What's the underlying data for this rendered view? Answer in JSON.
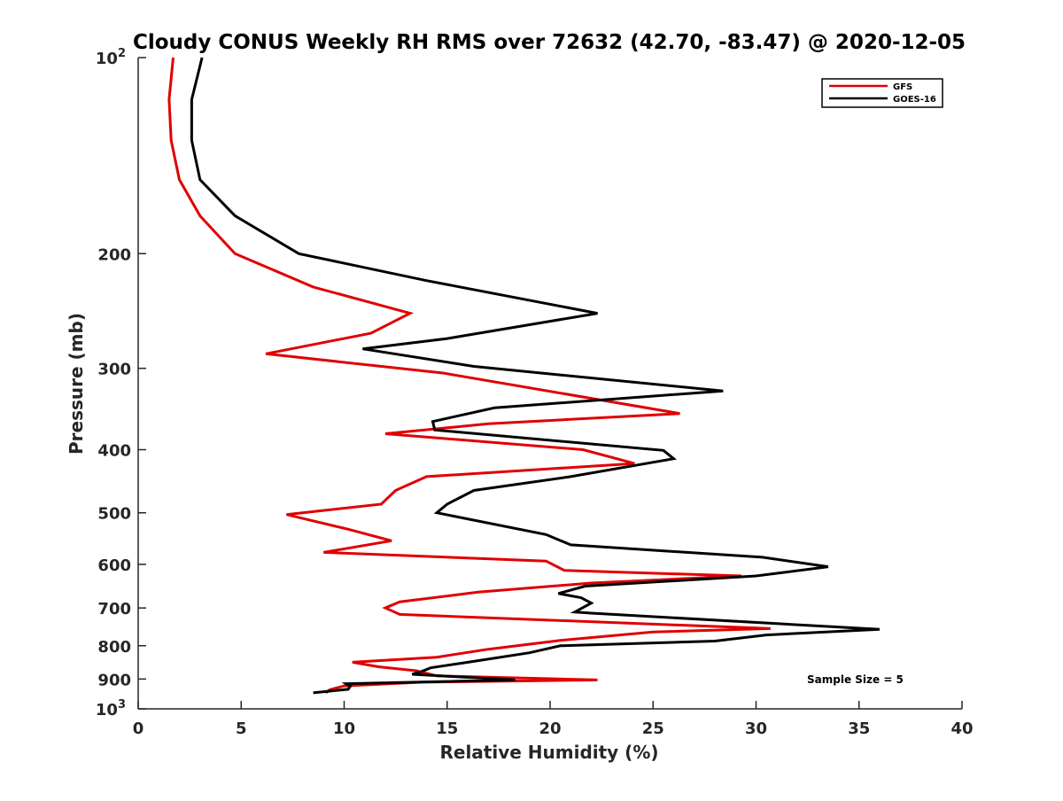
{
  "chart_data": {
    "type": "line",
    "title": "Cloudy CONUS Weekly RH RMS over 72632 (42.70, -83.47) @ 2020-12-05",
    "xlabel": "Relative Humidity (%)",
    "ylabel": "Pressure (mb)",
    "xlim": [
      0,
      40
    ],
    "ylim": [
      100,
      1000
    ],
    "y_scale": "log",
    "y_reversed": true,
    "grid": false,
    "legend_position": "top-right",
    "x_ticks": [
      "0",
      "5",
      "10",
      "15",
      "20",
      "25",
      "30",
      "35",
      "40"
    ],
    "x_tick_values": [
      0,
      5,
      10,
      15,
      20,
      25,
      30,
      35,
      40
    ],
    "y_ticks": [
      {
        "value": 100,
        "base": "10",
        "exp": "2"
      },
      {
        "value": 200,
        "label": "200"
      },
      {
        "value": 300,
        "label": "300"
      },
      {
        "value": 400,
        "label": "400"
      },
      {
        "value": 500,
        "label": "500"
      },
      {
        "value": 600,
        "label": "600"
      },
      {
        "value": 700,
        "label": "700"
      },
      {
        "value": 800,
        "label": "800"
      },
      {
        "value": 900,
        "label": "900"
      },
      {
        "value": 1000,
        "base": "10",
        "exp": "3"
      }
    ],
    "annotation": "Sample Size = 5",
    "series": [
      {
        "name": "GFS",
        "color": "#e00000",
        "points": [
          [
            1.7,
            100
          ],
          [
            1.5,
            116
          ],
          [
            1.6,
            134
          ],
          [
            2.0,
            154
          ],
          [
            3.0,
            175
          ],
          [
            4.7,
            200
          ],
          [
            8.5,
            225
          ],
          [
            13.2,
            247
          ],
          [
            11.3,
            265
          ],
          [
            6.2,
            285
          ],
          [
            14.8,
            305
          ],
          [
            26.3,
            352
          ],
          [
            17.0,
            365
          ],
          [
            12.0,
            378
          ],
          [
            21.6,
            400
          ],
          [
            24.1,
            420
          ],
          [
            14.0,
            440
          ],
          [
            12.5,
            462
          ],
          [
            11.8,
            485
          ],
          [
            7.2,
            503
          ],
          [
            10.2,
            530
          ],
          [
            12.3,
            552
          ],
          [
            9.0,
            575
          ],
          [
            19.8,
            593
          ],
          [
            20.7,
            613
          ],
          [
            29.3,
            625
          ],
          [
            22.0,
            641
          ],
          [
            16.5,
            662
          ],
          [
            12.7,
            685
          ],
          [
            12.0,
            700
          ],
          [
            12.7,
            716
          ],
          [
            30.7,
            753
          ],
          [
            25.0,
            762
          ],
          [
            20.5,
            785
          ],
          [
            17.0,
            810
          ],
          [
            14.5,
            833
          ],
          [
            10.4,
            848
          ],
          [
            11.7,
            862
          ],
          [
            13.5,
            874
          ],
          [
            14.5,
            890
          ],
          [
            22.3,
            903
          ],
          [
            13.8,
            910
          ],
          [
            10.0,
            922
          ],
          [
            9.3,
            935
          ],
          [
            9.1,
            945
          ]
        ]
      },
      {
        "name": "GOES-16",
        "color": "#000000",
        "points": [
          [
            3.1,
            100
          ],
          [
            2.6,
            116
          ],
          [
            2.6,
            134
          ],
          [
            3.0,
            154
          ],
          [
            4.7,
            175
          ],
          [
            7.8,
            200
          ],
          [
            14.0,
            220
          ],
          [
            22.3,
            247
          ],
          [
            15.0,
            270
          ],
          [
            10.9,
            280
          ],
          [
            16.3,
            298
          ],
          [
            28.4,
            325
          ],
          [
            17.3,
            345
          ],
          [
            14.3,
            362
          ],
          [
            14.4,
            373
          ],
          [
            25.5,
            401
          ],
          [
            26.0,
            413
          ],
          [
            21.0,
            440
          ],
          [
            16.3,
            462
          ],
          [
            15.0,
            485
          ],
          [
            14.5,
            500
          ],
          [
            19.8,
            540
          ],
          [
            21.0,
            560
          ],
          [
            30.3,
            585
          ],
          [
            33.5,
            605
          ],
          [
            30.0,
            625
          ],
          [
            21.7,
            648
          ],
          [
            20.4,
            665
          ],
          [
            21.5,
            675
          ],
          [
            22.0,
            688
          ],
          [
            21.2,
            710
          ],
          [
            22.0,
            713
          ],
          [
            36.0,
            755
          ],
          [
            30.5,
            770
          ],
          [
            28.0,
            787
          ],
          [
            20.5,
            800
          ],
          [
            19.0,
            820
          ],
          [
            15.8,
            850
          ],
          [
            14.2,
            865
          ],
          [
            13.8,
            875
          ],
          [
            13.3,
            885
          ],
          [
            18.3,
            903
          ],
          [
            10.1,
            915
          ],
          [
            10.3,
            923
          ],
          [
            10.2,
            933
          ],
          [
            8.5,
            945
          ]
        ]
      }
    ]
  }
}
